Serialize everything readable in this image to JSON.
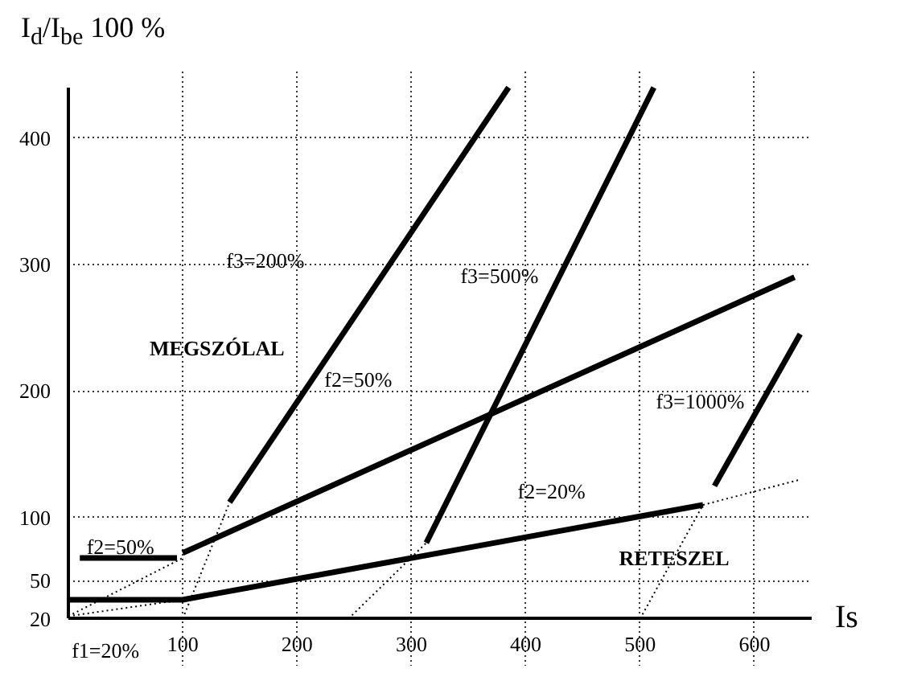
{
  "chart_data": {
    "type": "line",
    "xlabel": "Is",
    "ylabel": "I$_{d}$/I$_{be}$ 100 %",
    "xlim": [
      0,
      650
    ],
    "ylim": [
      20,
      440
    ],
    "xticks": [
      100,
      200,
      300,
      400,
      500,
      600
    ],
    "yticks": [
      20,
      50,
      100,
      200,
      300,
      400
    ],
    "grid": true,
    "marker": "none",
    "series": [
      {
        "color": "#000000",
        "x": [
          0,
          100,
          555
        ],
        "values": [
          35,
          35,
          110
        ],
        "line_style": "solid"
      },
      {
        "color": "#000000",
        "x": [
          10,
          95
        ],
        "values": [
          68,
          68
        ],
        "line_style": "solid"
      },
      {
        "color": "#000000",
        "x": [
          100,
          635
        ],
        "values": [
          72,
          290
        ],
        "line_style": "solid"
      },
      {
        "color": "#000000",
        "x": [
          141,
          385
        ],
        "values": [
          112,
          440
        ],
        "line_style": "solid"
      },
      {
        "color": "#000000",
        "x": [
          313,
          512
        ],
        "values": [
          80,
          440
        ],
        "line_style": "solid"
      },
      {
        "color": "#000000",
        "x": [
          565,
          640
        ],
        "values": [
          125,
          245
        ],
        "line_style": "solid"
      },
      {
        "color": "#000000",
        "x": [
          0,
          100
        ],
        "values": [
          22,
          68
        ],
        "line_style": "dotted"
      },
      {
        "color": "#000000",
        "x": [
          0,
          100
        ],
        "values": [
          22,
          35
        ],
        "line_style": "dotted"
      },
      {
        "color": "#000000",
        "x": [
          100,
          141
        ],
        "values": [
          20,
          112
        ],
        "line_style": "dotted"
      },
      {
        "color": "#000000",
        "x": [
          245,
          313
        ],
        "values": [
          20,
          80
        ],
        "line_style": "dotted"
      },
      {
        "color": "#000000",
        "x": [
          500,
          555
        ],
        "values": [
          20,
          110
        ],
        "line_style": "dotted"
      },
      {
        "color": "#000000",
        "x": [
          555,
          640
        ],
        "values": [
          110,
          130
        ],
        "line_style": "dotted"
      }
    ],
    "annotations": [
      "f3=200%",
      "f3=500%",
      "MEGSZÓLAL",
      "f2=50%",
      "f3=1000%",
      "f2=20%",
      "f2=50%",
      "RETESZEL",
      "f1=20%"
    ]
  }
}
